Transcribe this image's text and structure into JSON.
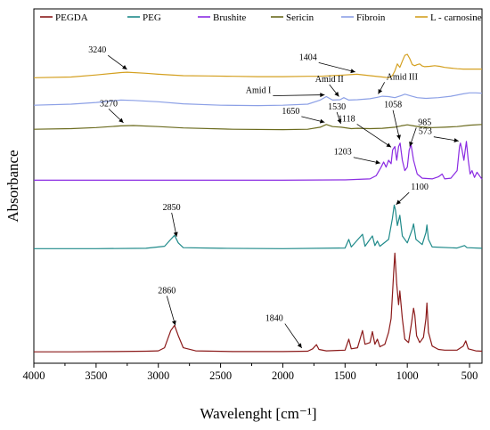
{
  "chart_data": {
    "type": "line",
    "title": "",
    "xlabel": "Wavelenght [cm⁻¹]",
    "ylabel": "Absorbance",
    "xlim": [
      4000,
      400
    ],
    "x_reversed": true,
    "xticks": [
      4000,
      3500,
      3000,
      2500,
      2000,
      1500,
      1000,
      500
    ],
    "y_ticks_shown": false,
    "grid": false,
    "legend_position": "top",
    "series": [
      {
        "name": "PEGDA",
        "color": "#8b1a1a",
        "offset": 0.0,
        "points": [
          [
            4000,
            0.3
          ],
          [
            3700,
            0.3
          ],
          [
            3400,
            0.4
          ],
          [
            3100,
            0.5
          ],
          [
            3000,
            0.6
          ],
          [
            2950,
            1.5
          ],
          [
            2900,
            6.5
          ],
          [
            2870,
            8.0
          ],
          [
            2840,
            5.0
          ],
          [
            2800,
            1.5
          ],
          [
            2700,
            0.6
          ],
          [
            2400,
            0.4
          ],
          [
            2000,
            0.4
          ],
          [
            1800,
            0.5
          ],
          [
            1760,
            1.2
          ],
          [
            1730,
            2.4
          ],
          [
            1710,
            1.0
          ],
          [
            1650,
            0.6
          ],
          [
            1500,
            0.8
          ],
          [
            1470,
            4.0
          ],
          [
            1450,
            1.2
          ],
          [
            1400,
            1.5
          ],
          [
            1360,
            6.5
          ],
          [
            1340,
            2.5
          ],
          [
            1300,
            3.0
          ],
          [
            1280,
            6.2
          ],
          [
            1260,
            2.5
          ],
          [
            1240,
            4.0
          ],
          [
            1220,
            1.8
          ],
          [
            1180,
            2.5
          ],
          [
            1150,
            6.0
          ],
          [
            1130,
            10.0
          ],
          [
            1110,
            23.0
          ],
          [
            1100,
            29.0
          ],
          [
            1085,
            20.0
          ],
          [
            1070,
            14.0
          ],
          [
            1060,
            18.0
          ],
          [
            1040,
            10.0
          ],
          [
            1020,
            4.0
          ],
          [
            990,
            3.0
          ],
          [
            965,
            9.0
          ],
          [
            950,
            13.0
          ],
          [
            940,
            11.0
          ],
          [
            925,
            5.0
          ],
          [
            900,
            3.0
          ],
          [
            870,
            4.5
          ],
          [
            850,
            10.0
          ],
          [
            842,
            14.5
          ],
          [
            830,
            6.0
          ],
          [
            800,
            2.0
          ],
          [
            750,
            1.0
          ],
          [
            700,
            0.8
          ],
          [
            600,
            0.8
          ],
          [
            550,
            2.0
          ],
          [
            530,
            3.5
          ],
          [
            510,
            1.2
          ],
          [
            450,
            0.6
          ],
          [
            400,
            0.5
          ]
        ]
      },
      {
        "name": "PEG",
        "color": "#1f8a8a",
        "offset": 30.0,
        "points": [
          [
            4000,
            0.3
          ],
          [
            3500,
            0.3
          ],
          [
            3100,
            0.4
          ],
          [
            2950,
            1.0
          ],
          [
            2900,
            3.0
          ],
          [
            2870,
            4.2
          ],
          [
            2840,
            2.0
          ],
          [
            2800,
            0.6
          ],
          [
            2500,
            0.4
          ],
          [
            2000,
            0.3
          ],
          [
            1500,
            0.5
          ],
          [
            1470,
            3.0
          ],
          [
            1450,
            0.8
          ],
          [
            1360,
            4.5
          ],
          [
            1340,
            1.0
          ],
          [
            1280,
            4.0
          ],
          [
            1260,
            1.2
          ],
          [
            1240,
            2.5
          ],
          [
            1220,
            1.0
          ],
          [
            1150,
            3.0
          ],
          [
            1120,
            9.0
          ],
          [
            1105,
            13.0
          ],
          [
            1095,
            11.5
          ],
          [
            1080,
            7.0
          ],
          [
            1060,
            10.0
          ],
          [
            1040,
            4.0
          ],
          [
            1000,
            2.0
          ],
          [
            960,
            6.0
          ],
          [
            950,
            7.5
          ],
          [
            930,
            3.0
          ],
          [
            880,
            1.5
          ],
          [
            850,
            5.0
          ],
          [
            842,
            7.2
          ],
          [
            830,
            3.0
          ],
          [
            800,
            0.8
          ],
          [
            600,
            0.5
          ],
          [
            540,
            1.2
          ],
          [
            520,
            0.6
          ],
          [
            400,
            0.4
          ]
        ]
      },
      {
        "name": "Brushite",
        "color": "#8a2be2",
        "offset": 50.0,
        "points": [
          [
            4000,
            0.2
          ],
          [
            3000,
            0.2
          ],
          [
            2000,
            0.2
          ],
          [
            1500,
            0.3
          ],
          [
            1300,
            0.6
          ],
          [
            1250,
            1.5
          ],
          [
            1210,
            4.0
          ],
          [
            1190,
            5.5
          ],
          [
            1170,
            4.0
          ],
          [
            1150,
            6.0
          ],
          [
            1130,
            5.0
          ],
          [
            1118,
            9.0
          ],
          [
            1100,
            10.0
          ],
          [
            1085,
            6.0
          ],
          [
            1070,
            10.0
          ],
          [
            1058,
            11.0
          ],
          [
            1040,
            6.0
          ],
          [
            1020,
            3.0
          ],
          [
            1000,
            4.0
          ],
          [
            985,
            9.0
          ],
          [
            970,
            10.5
          ],
          [
            950,
            6.0
          ],
          [
            920,
            2.0
          ],
          [
            880,
            0.8
          ],
          [
            800,
            0.6
          ],
          [
            750,
            1.2
          ],
          [
            720,
            2.0
          ],
          [
            700,
            0.6
          ],
          [
            650,
            0.8
          ],
          [
            600,
            3.0
          ],
          [
            580,
            10.0
          ],
          [
            573,
            11.0
          ],
          [
            560,
            9.0
          ],
          [
            545,
            6.0
          ],
          [
            525,
            11.5
          ],
          [
            510,
            6.0
          ],
          [
            495,
            2.0
          ],
          [
            480,
            3.0
          ],
          [
            460,
            1.0
          ],
          [
            440,
            2.5
          ],
          [
            400,
            0.5
          ]
        ]
      },
      {
        "name": "Sericin",
        "color": "#6b6b1e",
        "offset": 64.0,
        "points": [
          [
            4000,
            1.0
          ],
          [
            3700,
            1.2
          ],
          [
            3500,
            1.5
          ],
          [
            3300,
            2.0
          ],
          [
            3200,
            2.1
          ],
          [
            3000,
            1.8
          ],
          [
            2800,
            1.4
          ],
          [
            2400,
            1.0
          ],
          [
            2000,
            0.9
          ],
          [
            1800,
            1.0
          ],
          [
            1700,
            1.6
          ],
          [
            1650,
            2.4
          ],
          [
            1600,
            1.8
          ],
          [
            1530,
            1.6
          ],
          [
            1450,
            1.2
          ],
          [
            1400,
            1.3
          ],
          [
            1300,
            1.2
          ],
          [
            1200,
            1.3
          ],
          [
            1100,
            1.6
          ],
          [
            1050,
            2.0
          ],
          [
            1000,
            2.3
          ],
          [
            950,
            2.0
          ],
          [
            900,
            1.7
          ],
          [
            800,
            1.5
          ],
          [
            700,
            1.6
          ],
          [
            600,
            1.8
          ],
          [
            500,
            2.2
          ],
          [
            400,
            2.4
          ]
        ]
      },
      {
        "name": "Fibroin",
        "color": "#8ca0e6",
        "offset": 70.0,
        "points": [
          [
            4000,
            2.0
          ],
          [
            3700,
            2.3
          ],
          [
            3500,
            2.8
          ],
          [
            3300,
            3.5
          ],
          [
            3200,
            3.4
          ],
          [
            3000,
            3.0
          ],
          [
            2800,
            2.4
          ],
          [
            2500,
            2.0
          ],
          [
            2200,
            1.9
          ],
          [
            2000,
            2.0
          ],
          [
            1800,
            2.3
          ],
          [
            1700,
            3.5
          ],
          [
            1650,
            4.5
          ],
          [
            1600,
            3.5
          ],
          [
            1540,
            3.6
          ],
          [
            1510,
            4.2
          ],
          [
            1470,
            3.5
          ],
          [
            1400,
            3.6
          ],
          [
            1300,
            3.9
          ],
          [
            1240,
            4.3
          ],
          [
            1200,
            4.6
          ],
          [
            1150,
            4.5
          ],
          [
            1100,
            4.2
          ],
          [
            1050,
            4.8
          ],
          [
            1020,
            5.2
          ],
          [
            1000,
            5.0
          ],
          [
            970,
            4.7
          ],
          [
            920,
            4.2
          ],
          [
            850,
            4.0
          ],
          [
            750,
            4.2
          ],
          [
            650,
            4.6
          ],
          [
            550,
            5.3
          ],
          [
            500,
            5.6
          ],
          [
            450,
            5.6
          ],
          [
            400,
            5.5
          ]
        ]
      },
      {
        "name": "L - carnosine",
        "color": "#d4a020",
        "offset": 79.0,
        "points": [
          [
            4000,
            1.0
          ],
          [
            3700,
            1.2
          ],
          [
            3500,
            1.8
          ],
          [
            3300,
            2.5
          ],
          [
            3250,
            2.6
          ],
          [
            3100,
            2.3
          ],
          [
            3000,
            2.0
          ],
          [
            2800,
            1.6
          ],
          [
            2600,
            1.5
          ],
          [
            2400,
            1.4
          ],
          [
            2200,
            1.3
          ],
          [
            2000,
            1.3
          ],
          [
            1800,
            1.4
          ],
          [
            1700,
            1.4
          ],
          [
            1600,
            1.6
          ],
          [
            1500,
            1.8
          ],
          [
            1404,
            2.0
          ],
          [
            1300,
            1.6
          ],
          [
            1200,
            1.2
          ],
          [
            1150,
            1.0
          ],
          [
            1120,
            1.6
          ],
          [
            1100,
            3.0
          ],
          [
            1080,
            5.0
          ],
          [
            1060,
            4.0
          ],
          [
            1040,
            5.8
          ],
          [
            1020,
            7.5
          ],
          [
            1000,
            7.8
          ],
          [
            980,
            6.5
          ],
          [
            960,
            4.8
          ],
          [
            940,
            4.5
          ],
          [
            920,
            4.8
          ],
          [
            900,
            5.0
          ],
          [
            880,
            4.4
          ],
          [
            860,
            4.2
          ],
          [
            820,
            4.3
          ],
          [
            780,
            4.5
          ],
          [
            740,
            4.3
          ],
          [
            700,
            4.0
          ],
          [
            650,
            3.8
          ],
          [
            600,
            3.6
          ],
          [
            550,
            3.5
          ],
          [
            500,
            3.5
          ],
          [
            450,
            3.5
          ],
          [
            400,
            3.5
          ]
        ]
      }
    ],
    "annotations": [
      {
        "text": "3240",
        "series": "L - carnosine",
        "x": 3240
      },
      {
        "text": "1404",
        "series": "L - carnosine",
        "x": 1404
      },
      {
        "text": "Amid I",
        "series": "Fibroin",
        "x": 1650
      },
      {
        "text": "Amid II",
        "series": "Fibroin",
        "x": 1540
      },
      {
        "text": "Amid III",
        "series": "Fibroin",
        "x": 1240
      },
      {
        "text": "3270",
        "series": "Sericin",
        "x": 3270
      },
      {
        "text": "1650",
        "series": "Sericin",
        "x": 1650
      },
      {
        "text": "1530",
        "series": "Sericin",
        "x": 1530
      },
      {
        "text": "1118",
        "series": "Brushite",
        "x": 1118
      },
      {
        "text": "1058",
        "series": "Brushite",
        "x": 1058
      },
      {
        "text": "1203",
        "series": "Brushite",
        "x": 1203
      },
      {
        "text": "985",
        "series": "Brushite",
        "x": 985
      },
      {
        "text": "573",
        "series": "Brushite",
        "x": 573
      },
      {
        "text": "2850",
        "series": "PEG",
        "x": 2850
      },
      {
        "text": "1100",
        "series": "PEG",
        "x": 1100
      },
      {
        "text": "2860",
        "series": "PEGDA",
        "x": 2860
      },
      {
        "text": "1840",
        "series": "PEGDA",
        "x": 1840
      }
    ]
  }
}
